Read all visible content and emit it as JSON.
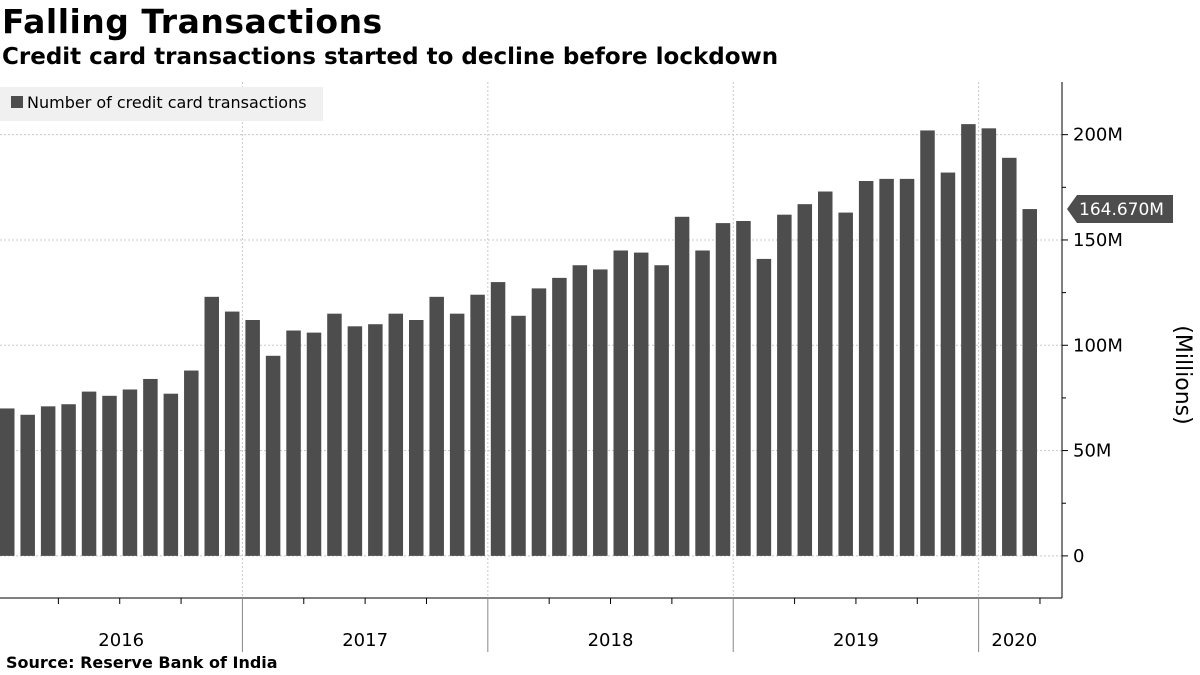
{
  "title": "Falling Transactions",
  "subtitle": "Credit card transactions started to decline before lockdown",
  "source": "Source:  Reserve Bank of India",
  "chart_data": {
    "type": "bar",
    "series": [
      {
        "name": "Number of credit card transactions",
        "color": "#4d4d4d",
        "values": [
          70,
          67,
          71,
          72,
          78,
          76,
          79,
          84,
          77,
          88,
          123,
          116,
          112,
          95,
          107,
          106,
          115,
          109,
          110,
          115,
          112,
          123,
          115,
          124,
          130,
          114,
          127,
          132,
          138,
          136,
          145,
          144,
          138,
          161,
          145,
          158,
          159,
          141,
          162,
          167,
          173,
          163,
          178,
          179,
          179,
          202,
          182,
          205,
          203,
          189,
          164.67
        ]
      }
    ],
    "x_start": "2016-01",
    "x_frequency": "monthly",
    "year_labels": [
      "2016",
      "2017",
      "2018",
      "2019",
      "2020"
    ],
    "ylabel": "(Millions)",
    "y_ticks": [
      0,
      50,
      100,
      150,
      200
    ],
    "y_tick_labels": [
      "0",
      "50M",
      "100M",
      "150M",
      "200M"
    ],
    "ylim": [
      -20,
      225
    ],
    "y_axis_side": "right",
    "grid": true,
    "legend_position": "top-left",
    "last_value_label": "164.670M"
  }
}
